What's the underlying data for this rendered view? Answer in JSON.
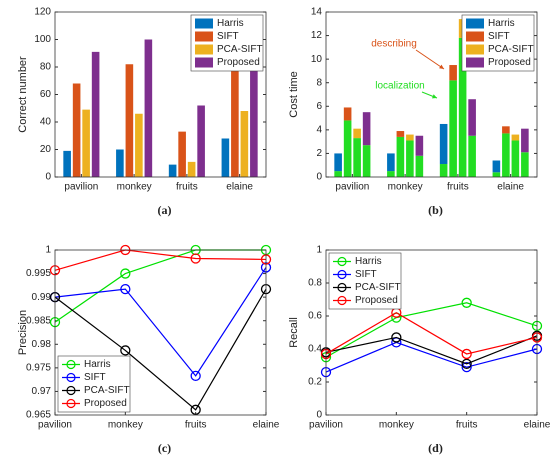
{
  "chart_data": [
    {
      "type": "bar",
      "ylabel": "Correct number",
      "caption": "(a)",
      "categories": [
        "pavilion",
        "monkey",
        "fruits",
        "elaine"
      ],
      "series": [
        {
          "name": "Harris",
          "color": "#0072bd",
          "values": [
            19,
            20,
            9,
            28
          ]
        },
        {
          "name": "SIFT",
          "color": "#d95319",
          "values": [
            68,
            82,
            33,
            80
          ]
        },
        {
          "name": "PCA-SIFT",
          "color": "#edb120",
          "values": [
            49,
            46,
            11,
            48
          ]
        },
        {
          "name": "Proposed",
          "color": "#7e2f8e",
          "values": [
            91,
            100,
            52,
            98
          ]
        }
      ],
      "ylim": [
        0,
        120
      ],
      "yticks": [
        0,
        20,
        40,
        60,
        80,
        100,
        120
      ],
      "legend": "upper right"
    },
    {
      "type": "stacked_bar",
      "ylabel": "Cost time",
      "caption": "(b)",
      "categories": [
        "pavilion",
        "monkey",
        "fruits",
        "elaine"
      ],
      "localization_color": "#22dd22",
      "series": [
        {
          "name": "Harris",
          "color": "#0072bd",
          "localization": [
            0.5,
            0.5,
            1.1,
            0.4
          ],
          "describing": [
            1.5,
            1.5,
            3.4,
            1.0
          ]
        },
        {
          "name": "SIFT",
          "color": "#d95319",
          "localization": [
            4.8,
            3.4,
            8.2,
            3.7
          ],
          "describing": [
            1.1,
            0.5,
            1.3,
            0.6
          ]
        },
        {
          "name": "PCA-SIFT",
          "color": "#edb120",
          "localization": [
            3.3,
            3.1,
            11.8,
            3.1
          ],
          "describing": [
            0.8,
            0.5,
            1.6,
            0.5
          ]
        },
        {
          "name": "Proposed",
          "color": "#7e2f8e",
          "localization": [
            2.7,
            1.8,
            3.5,
            2.1
          ],
          "describing": [
            2.8,
            1.7,
            3.1,
            2.0
          ]
        }
      ],
      "annotations": [
        {
          "text": "describing",
          "color": "#d95319"
        },
        {
          "text": "localization",
          "color": "#22dd22"
        }
      ],
      "ylim": [
        0,
        14
      ],
      "yticks": [
        0,
        2,
        4,
        6,
        8,
        10,
        12,
        14
      ],
      "legend": "upper right"
    },
    {
      "type": "line",
      "ylabel": "Precision",
      "caption": "(c)",
      "categories": [
        "pavilion",
        "monkey",
        "fruits",
        "elaine"
      ],
      "series": [
        {
          "name": "Harris",
          "color": "#00e000",
          "values": [
            0.9847,
            0.995,
            1.0,
            1.0
          ]
        },
        {
          "name": "SIFT",
          "color": "#0000ff",
          "values": [
            0.99,
            0.9917,
            0.9733,
            0.9963
          ]
        },
        {
          "name": "PCA-SIFT",
          "color": "#000000",
          "values": [
            0.99,
            0.9787,
            0.9661,
            0.9917
          ]
        },
        {
          "name": "Proposed",
          "color": "#ff0000",
          "values": [
            0.9957,
            1.0,
            0.9982,
            0.998
          ]
        }
      ],
      "ylim": [
        0.965,
        1
      ],
      "yticks": [
        0.965,
        0.97,
        0.975,
        0.98,
        0.985,
        0.99,
        0.995,
        1
      ],
      "legend": "lower left"
    },
    {
      "type": "line",
      "ylabel": "Recall",
      "caption": "(d)",
      "categories": [
        "pavilion",
        "monkey",
        "fruits",
        "elaine"
      ],
      "series": [
        {
          "name": "Harris",
          "color": "#00e000",
          "values": [
            0.35,
            0.59,
            0.68,
            0.54
          ]
        },
        {
          "name": "SIFT",
          "color": "#0000ff",
          "values": [
            0.26,
            0.44,
            0.29,
            0.4
          ]
        },
        {
          "name": "PCA-SIFT",
          "color": "#000000",
          "values": [
            0.38,
            0.47,
            0.31,
            0.48
          ]
        },
        {
          "name": "Proposed",
          "color": "#ff0000",
          "values": [
            0.37,
            0.62,
            0.37,
            0.47
          ]
        }
      ],
      "ylim": [
        0,
        1
      ],
      "yticks": [
        0,
        0.2,
        0.4,
        0.6,
        0.8,
        1
      ],
      "legend": "upper left"
    }
  ]
}
